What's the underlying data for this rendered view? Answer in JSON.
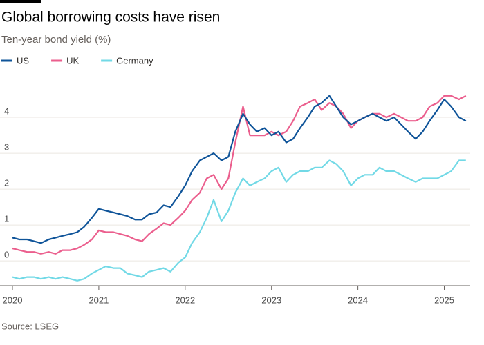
{
  "chart_data": {
    "type": "line",
    "title": "Global borrowing costs have risen",
    "subtitle": "Ten-year bond yield (%)",
    "source": "Source: LSEG",
    "x": [
      2020,
      2020.08,
      2020.17,
      2020.25,
      2020.33,
      2020.42,
      2020.5,
      2020.58,
      2020.67,
      2020.75,
      2020.83,
      2020.92,
      2021,
      2021.08,
      2021.17,
      2021.25,
      2021.33,
      2021.42,
      2021.5,
      2021.58,
      2021.67,
      2021.75,
      2021.83,
      2021.92,
      2022,
      2022.08,
      2022.17,
      2022.25,
      2022.33,
      2022.42,
      2022.5,
      2022.58,
      2022.67,
      2022.75,
      2022.83,
      2022.92,
      2023,
      2023.08,
      2023.17,
      2023.25,
      2023.33,
      2023.42,
      2023.5,
      2023.58,
      2023.67,
      2023.75,
      2023.83,
      2023.92,
      2024,
      2024.08,
      2024.17,
      2024.25,
      2024.33,
      2024.42,
      2024.5,
      2024.58,
      2024.67,
      2024.75,
      2024.83,
      2024.92,
      2025,
      2025.08,
      2025.17,
      2025.25
    ],
    "series": [
      {
        "name": "US",
        "color": "#0f5499",
        "values": [
          0.65,
          0.6,
          0.6,
          0.55,
          0.5,
          0.6,
          0.65,
          0.7,
          0.75,
          0.8,
          0.95,
          1.2,
          1.45,
          1.4,
          1.35,
          1.3,
          1.25,
          1.15,
          1.15,
          1.3,
          1.35,
          1.55,
          1.5,
          1.8,
          2.1,
          2.5,
          2.8,
          2.9,
          3.0,
          2.8,
          2.9,
          3.6,
          4.1,
          3.8,
          3.6,
          3.7,
          3.5,
          3.6,
          3.3,
          3.4,
          3.7,
          4.0,
          4.3,
          4.4,
          4.6,
          4.3,
          4.0,
          3.8,
          3.9,
          4.0,
          4.1,
          4.0,
          3.9,
          4.0,
          3.8,
          3.6,
          3.4,
          3.6,
          3.9,
          4.2,
          4.5,
          4.3,
          4.0,
          3.9
        ]
      },
      {
        "name": "UK",
        "color": "#eb5e8d",
        "values": [
          0.35,
          0.3,
          0.25,
          0.25,
          0.2,
          0.25,
          0.2,
          0.3,
          0.3,
          0.35,
          0.45,
          0.6,
          0.85,
          0.8,
          0.8,
          0.75,
          0.7,
          0.6,
          0.55,
          0.75,
          0.9,
          1.05,
          1.0,
          1.2,
          1.4,
          1.7,
          1.9,
          2.3,
          2.4,
          2.0,
          2.3,
          3.3,
          4.3,
          3.5,
          3.5,
          3.5,
          3.6,
          3.5,
          3.6,
          3.9,
          4.3,
          4.4,
          4.5,
          4.2,
          4.4,
          4.3,
          4.1,
          3.7,
          3.9,
          4.0,
          4.1,
          4.1,
          4.0,
          4.1,
          4.0,
          3.9,
          3.9,
          4.0,
          4.3,
          4.4,
          4.6,
          4.6,
          4.5,
          4.6
        ]
      },
      {
        "name": "Germany",
        "color": "#72d9e6",
        "values": [
          -0.45,
          -0.5,
          -0.45,
          -0.45,
          -0.5,
          -0.45,
          -0.5,
          -0.45,
          -0.5,
          -0.55,
          -0.5,
          -0.35,
          -0.25,
          -0.15,
          -0.2,
          -0.2,
          -0.35,
          -0.4,
          -0.45,
          -0.3,
          -0.25,
          -0.2,
          -0.3,
          -0.05,
          0.1,
          0.5,
          0.8,
          1.2,
          1.7,
          1.1,
          1.4,
          1.9,
          2.3,
          2.1,
          2.2,
          2.3,
          2.5,
          2.6,
          2.2,
          2.4,
          2.5,
          2.5,
          2.6,
          2.6,
          2.8,
          2.7,
          2.5,
          2.1,
          2.3,
          2.4,
          2.4,
          2.6,
          2.5,
          2.5,
          2.4,
          2.3,
          2.2,
          2.3,
          2.3,
          2.3,
          2.4,
          2.5,
          2.8,
          2.8
        ]
      }
    ],
    "xlim": [
      2020,
      2025.3
    ],
    "xticks": [
      2020,
      2021,
      2022,
      2023,
      2024,
      2025
    ],
    "ylim": [
      -0.65,
      5
    ],
    "yticks": [
      0,
      1,
      2,
      3,
      4
    ],
    "grid": true,
    "legend": "top"
  }
}
